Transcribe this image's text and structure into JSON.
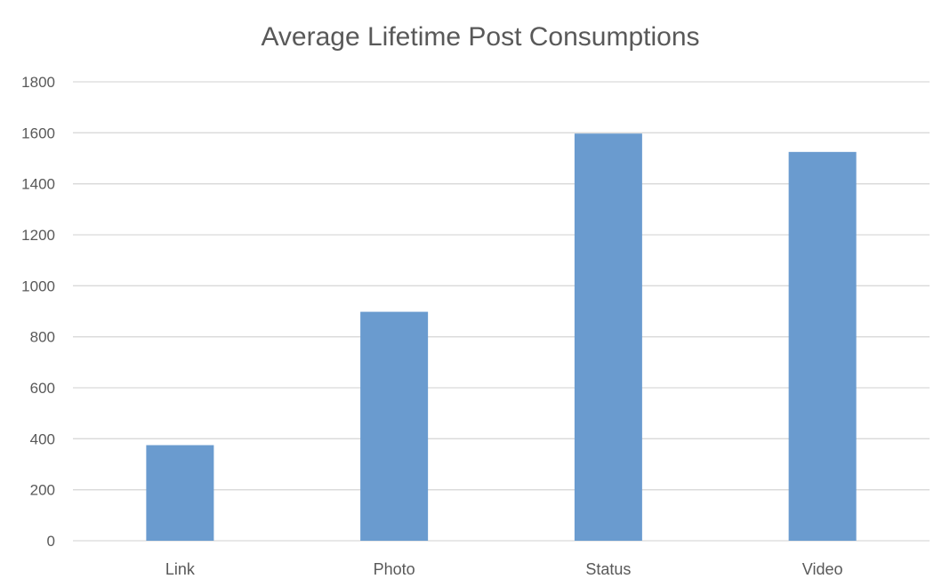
{
  "chart_data": {
    "type": "bar",
    "title": "Average Lifetime Post Consumptions",
    "xlabel": "",
    "ylabel": "",
    "categories": [
      "Link",
      "Photo",
      "Status",
      "Video"
    ],
    "values": [
      375,
      898,
      1597,
      1525
    ],
    "ylim": [
      0,
      1800
    ],
    "yticks": [
      "0",
      "200",
      "400",
      "600",
      "800",
      "1000",
      "1200",
      "1400",
      "1600",
      "1800"
    ],
    "grid": true,
    "legend": "none",
    "bar_color": "#6a9bcf"
  }
}
